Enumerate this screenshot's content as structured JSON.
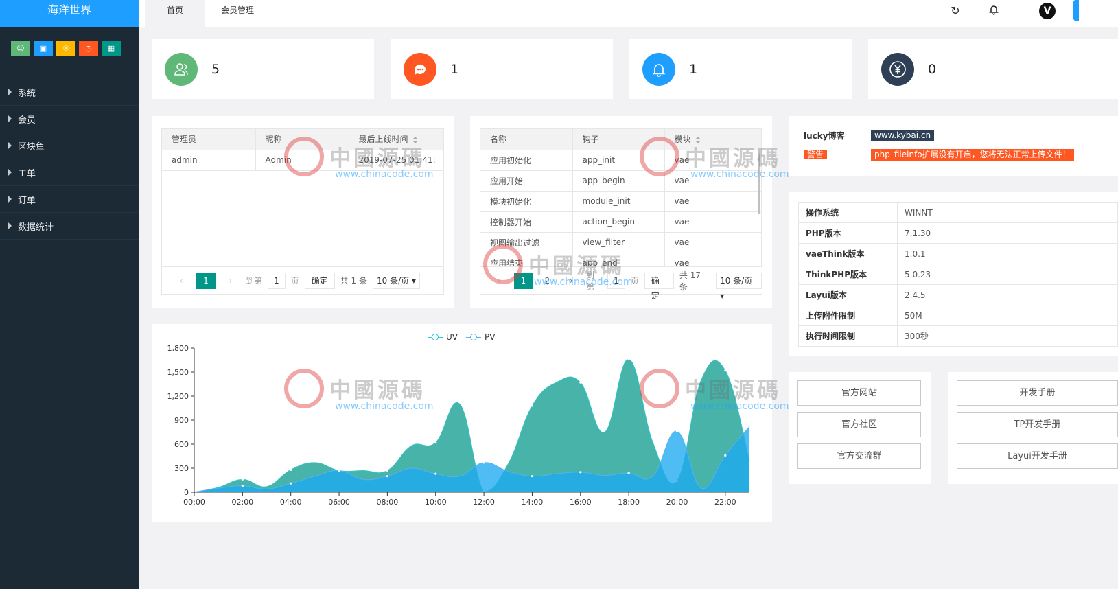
{
  "app": {
    "title": "海洋世界"
  },
  "quick_buttons": [
    {
      "icon": "user-icon",
      "color": "#5fb878"
    },
    {
      "icon": "lock-icon",
      "color": "#1e9fff"
    },
    {
      "icon": "globe-icon",
      "color": "#ffb800"
    },
    {
      "icon": "clock-icon",
      "color": "#ff5722"
    },
    {
      "icon": "trash-icon",
      "color": "#009688"
    }
  ],
  "nav": [
    "系统",
    "会员",
    "区块鱼",
    "工单",
    "订单",
    "数据统计"
  ],
  "tabs": [
    "首页",
    "会员管理"
  ],
  "header_icons": [
    "refresh-icon",
    "bell-icon",
    "avatar"
  ],
  "stats": [
    {
      "icon": "users-icon",
      "color": "#5fb878",
      "value": "5"
    },
    {
      "icon": "message-icon",
      "color": "#ff5722",
      "value": "1"
    },
    {
      "icon": "bell-icon",
      "color": "#1e9fff",
      "value": "1"
    },
    {
      "icon": "yen-icon",
      "color": "#2f4056",
      "value": "0"
    }
  ],
  "admin_table": {
    "headers": [
      "管理员",
      "昵称",
      "最后上线时间"
    ],
    "rows": [
      [
        "admin",
        "Admin",
        "2019-07-25 01:41:"
      ]
    ],
    "pager": {
      "prev": "‹",
      "current": "1",
      "next": "›",
      "goto": "到第",
      "page_value": "1",
      "page_unit": "页",
      "confirm": "确定",
      "total": "共 1 条",
      "size": "10 条/页"
    }
  },
  "hook_table": {
    "headers": [
      "名称",
      "钩子",
      "模块"
    ],
    "rows": [
      [
        "应用初始化",
        "app_init",
        "vae"
      ],
      [
        "应用开始",
        "app_begin",
        "vae"
      ],
      [
        "模块初始化",
        "module_init",
        "vae"
      ],
      [
        "控制器开始",
        "action_begin",
        "vae"
      ],
      [
        "视图输出过滤",
        "view_filter",
        "vae"
      ],
      [
        "应用结束",
        "app_end",
        "vae"
      ]
    ],
    "pager": {
      "prev": "‹",
      "current": "1",
      "page2": "2",
      "next": "›",
      "goto": "到第",
      "page_value": "1",
      "page_unit": "页",
      "confirm": "确定",
      "total": "共 17 条",
      "size": "10 条/页"
    }
  },
  "info": {
    "label1": "lucky博客",
    "badge1": "www.kybai.cn",
    "label2": "警告",
    "badge2": "php_fileinfo扩展没有开启，您将无法正常上传文件！"
  },
  "system": [
    [
      "操作系统",
      "WINNT"
    ],
    [
      "PHP版本",
      "7.1.30"
    ],
    [
      "vaeThink版本",
      "1.0.1"
    ],
    [
      "ThinkPHP版本",
      "5.0.23"
    ],
    [
      "Layui版本",
      "2.4.5"
    ],
    [
      "上传附件限制",
      "50M"
    ],
    [
      "执行时间限制",
      "300秒"
    ]
  ],
  "links_left": [
    "官方网站",
    "官方社区",
    "官方交流群"
  ],
  "links_right": [
    "开发手册",
    "TP开发手册",
    "Layui开发手册"
  ],
  "watermark": {
    "glyphs": "中國源碼",
    "url": "www.chinacode.com"
  },
  "chart_data": {
    "type": "area",
    "x": [
      "00:00",
      "01:00",
      "02:00",
      "03:00",
      "04:00",
      "05:00",
      "06:00",
      "07:00",
      "08:00",
      "09:00",
      "10:00",
      "11:00",
      "12:00",
      "13:00",
      "14:00",
      "15:00",
      "16:00",
      "17:00",
      "18:00",
      "19:00",
      "20:00",
      "21:00",
      "22:00",
      "23:00"
    ],
    "xticks": [
      "00:00",
      "02:00",
      "04:00",
      "06:00",
      "08:00",
      "10:00",
      "12:00",
      "14:00",
      "16:00",
      "18:00",
      "20:00",
      "22:00"
    ],
    "yticks": [
      "0",
      "300",
      "600",
      "900",
      "1,200",
      "1,500",
      "1,800"
    ],
    "ylim": [
      0,
      1800
    ],
    "series": [
      {
        "name": "UV",
        "color": "#2ec7c9",
        "values": [
          0,
          60,
          160,
          70,
          280,
          370,
          270,
          270,
          270,
          580,
          620,
          1100,
          10,
          350,
          1080,
          1370,
          1370,
          750,
          1660,
          620,
          140,
          1400,
          1520,
          390
        ]
      },
      {
        "name": "PV",
        "color": "#5ab1ef",
        "values": [
          0,
          50,
          80,
          40,
          110,
          200,
          270,
          160,
          200,
          300,
          230,
          200,
          370,
          260,
          200,
          230,
          250,
          210,
          240,
          200,
          760,
          50,
          460,
          820
        ]
      }
    ],
    "legend": "top-center"
  }
}
